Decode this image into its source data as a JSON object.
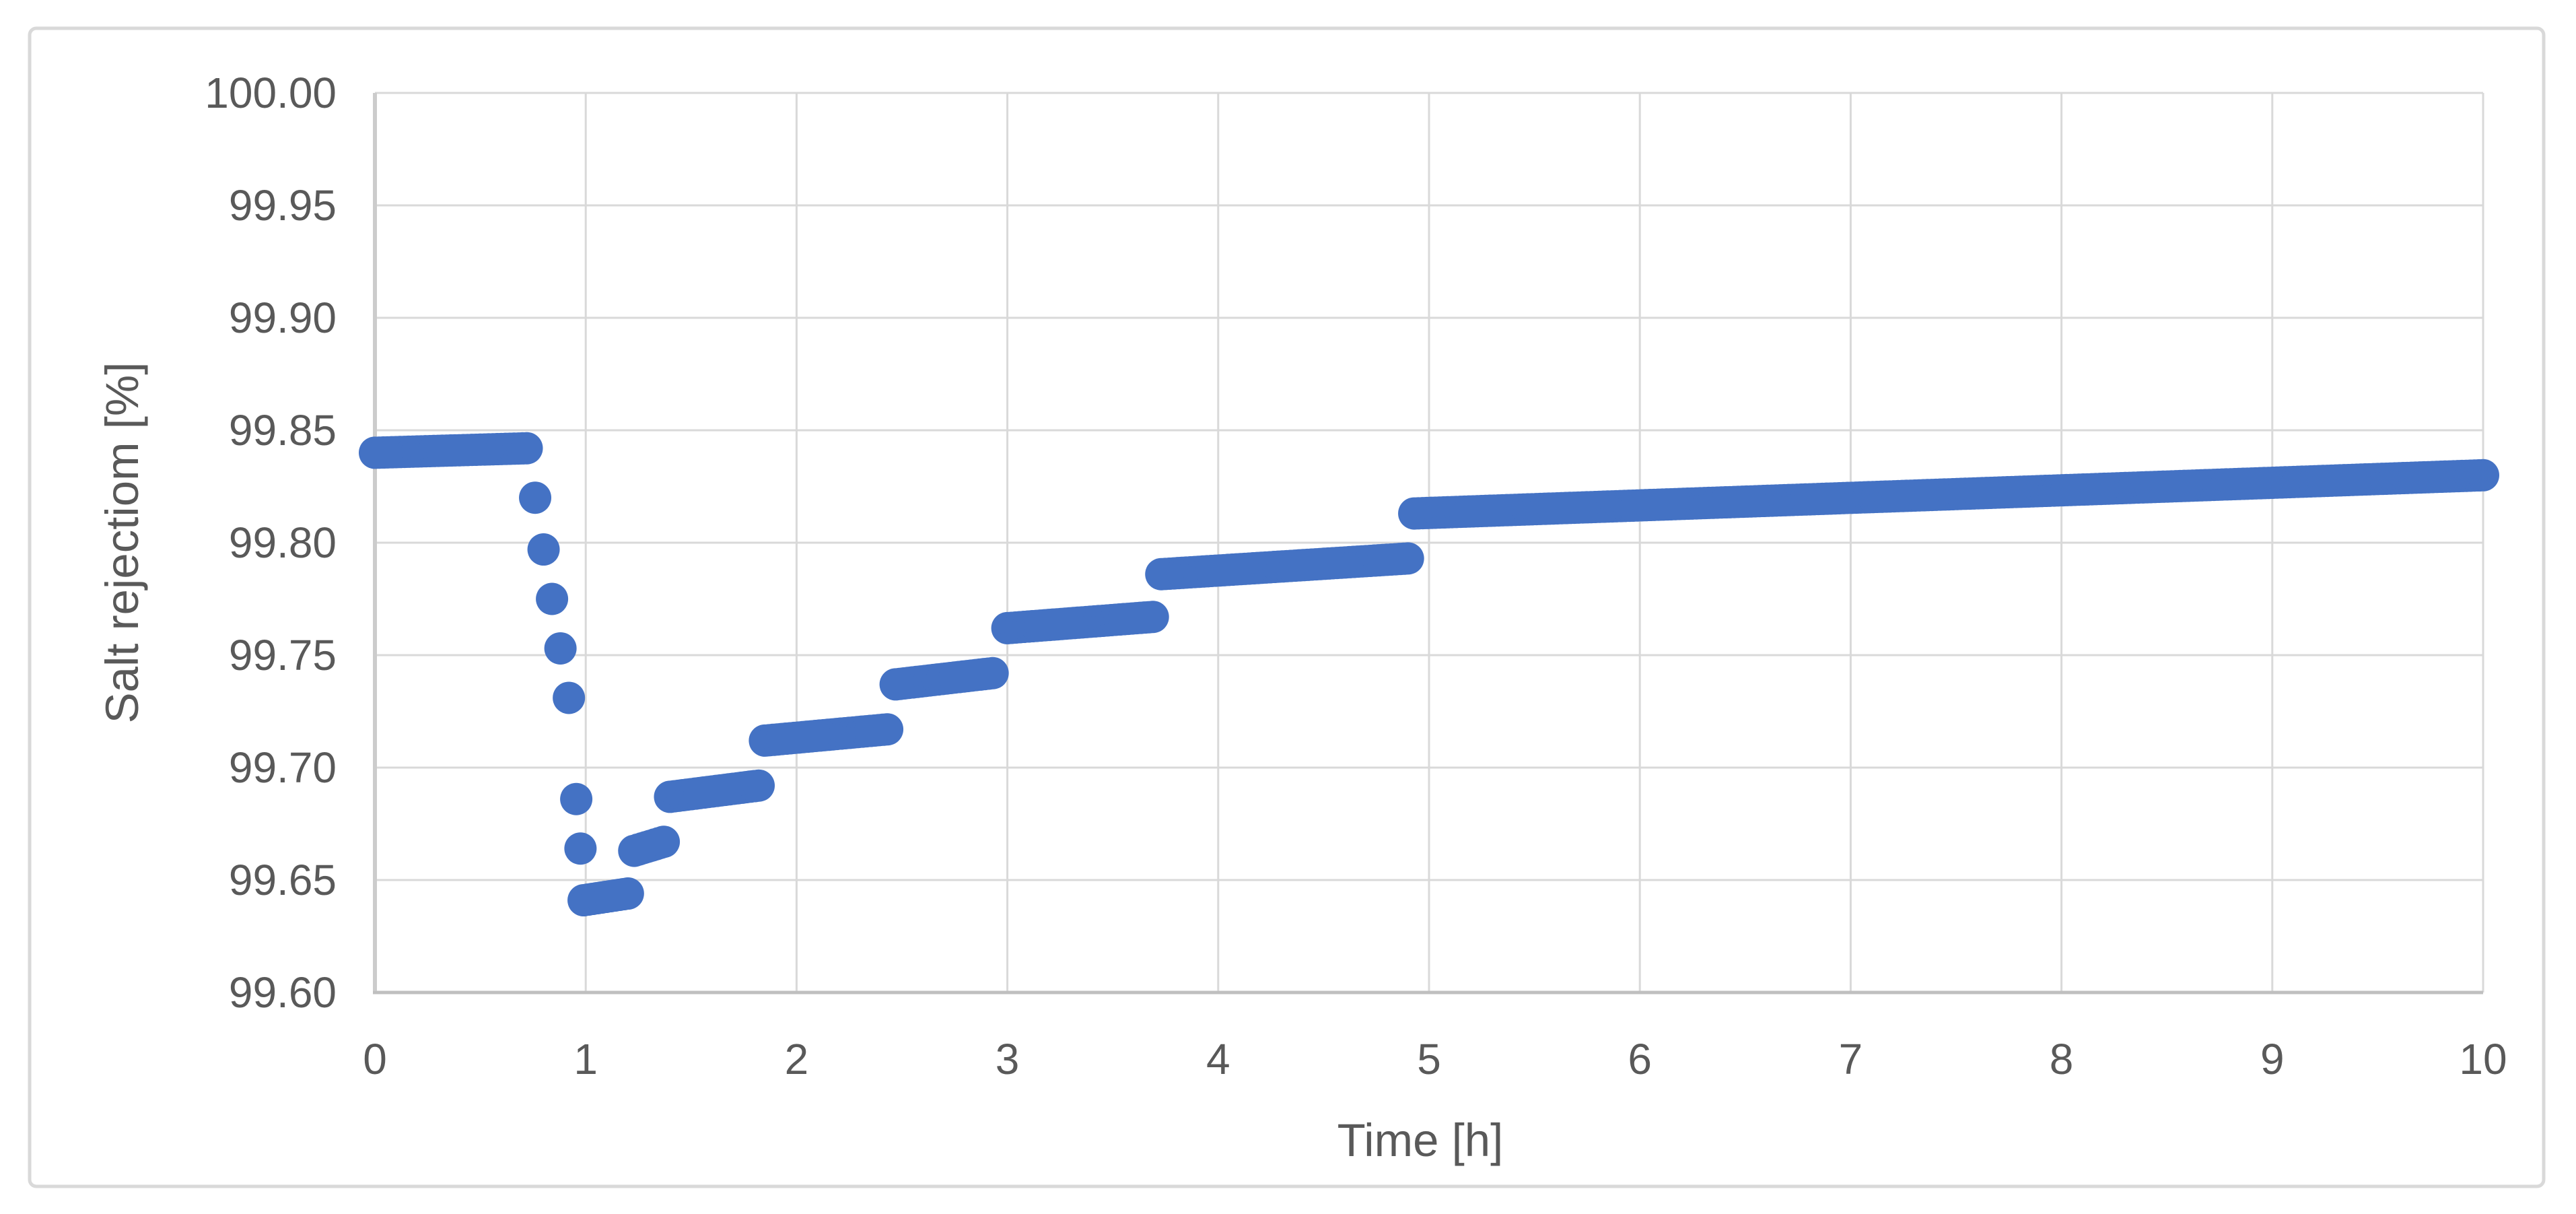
{
  "chart_data": {
    "type": "scatter",
    "title": "",
    "xlabel": "Time [h]",
    "ylabel": "Salt rejectiom [%]",
    "xlim": [
      0,
      10
    ],
    "ylim": [
      99.6,
      100.0
    ],
    "x_tick_step": 1,
    "y_tick_step": 0.05,
    "x_ticks": [
      0,
      1,
      2,
      3,
      4,
      5,
      6,
      7,
      8,
      9,
      10
    ],
    "x_tick_labels": [
      "0",
      "1",
      "2",
      "3",
      "4",
      "5",
      "6",
      "7",
      "8",
      "9",
      "10"
    ],
    "y_ticks": [
      100.0,
      99.95,
      99.9,
      99.85,
      99.8,
      99.75,
      99.7,
      99.65,
      99.6
    ],
    "y_tick_labels": [
      "100.00",
      "99.95",
      "99.90",
      "99.85",
      "99.80",
      "99.75",
      "99.70",
      "99.65",
      "99.60"
    ],
    "grid": true,
    "legend": "none",
    "series": [
      {
        "name": "Salt rejection",
        "marker": "circle",
        "color": "#4472C4",
        "sample_step_h": 0.02,
        "segments": [
          {
            "t_start": 0.0,
            "t_end": 0.72,
            "y_start": 99.84,
            "y_end": 99.842
          },
          {
            "t_start": 0.99,
            "t_end": 1.2,
            "y_start": 99.641,
            "y_end": 99.644
          },
          {
            "t_start": 1.23,
            "t_end": 1.37,
            "y_start": 99.663,
            "y_end": 99.667
          },
          {
            "t_start": 1.4,
            "t_end": 1.82,
            "y_start": 99.687,
            "y_end": 99.692
          },
          {
            "t_start": 1.85,
            "t_end": 2.43,
            "y_start": 99.712,
            "y_end": 99.717
          },
          {
            "t_start": 2.47,
            "t_end": 2.93,
            "y_start": 99.737,
            "y_end": 99.742
          },
          {
            "t_start": 3.0,
            "t_end": 3.69,
            "y_start": 99.762,
            "y_end": 99.767
          },
          {
            "t_start": 3.73,
            "t_end": 4.9,
            "y_start": 99.786,
            "y_end": 99.793
          },
          {
            "t_start": 4.93,
            "t_end": 10.0,
            "y_start": 99.813,
            "y_end": 99.83
          }
        ],
        "transient_points": [
          {
            "t": 0.76,
            "y": 99.82
          },
          {
            "t": 0.8,
            "y": 99.797
          },
          {
            "t": 0.84,
            "y": 99.775
          },
          {
            "t": 0.88,
            "y": 99.753
          },
          {
            "t": 0.92,
            "y": 99.731
          },
          {
            "t": 0.955,
            "y": 99.686
          },
          {
            "t": 0.975,
            "y": 99.664
          }
        ]
      }
    ]
  },
  "style": {
    "marker_color": "#4472C4",
    "gridline_color": "#D9D9D9",
    "left_axis_color": "#CCCCCC",
    "bottom_axis_color": "#BFBFBF",
    "tick_label_color": "#595959",
    "axis_title_color": "#595959",
    "chart_border_color": "#D9D9D9",
    "background_color": "#FFFFFF"
  }
}
